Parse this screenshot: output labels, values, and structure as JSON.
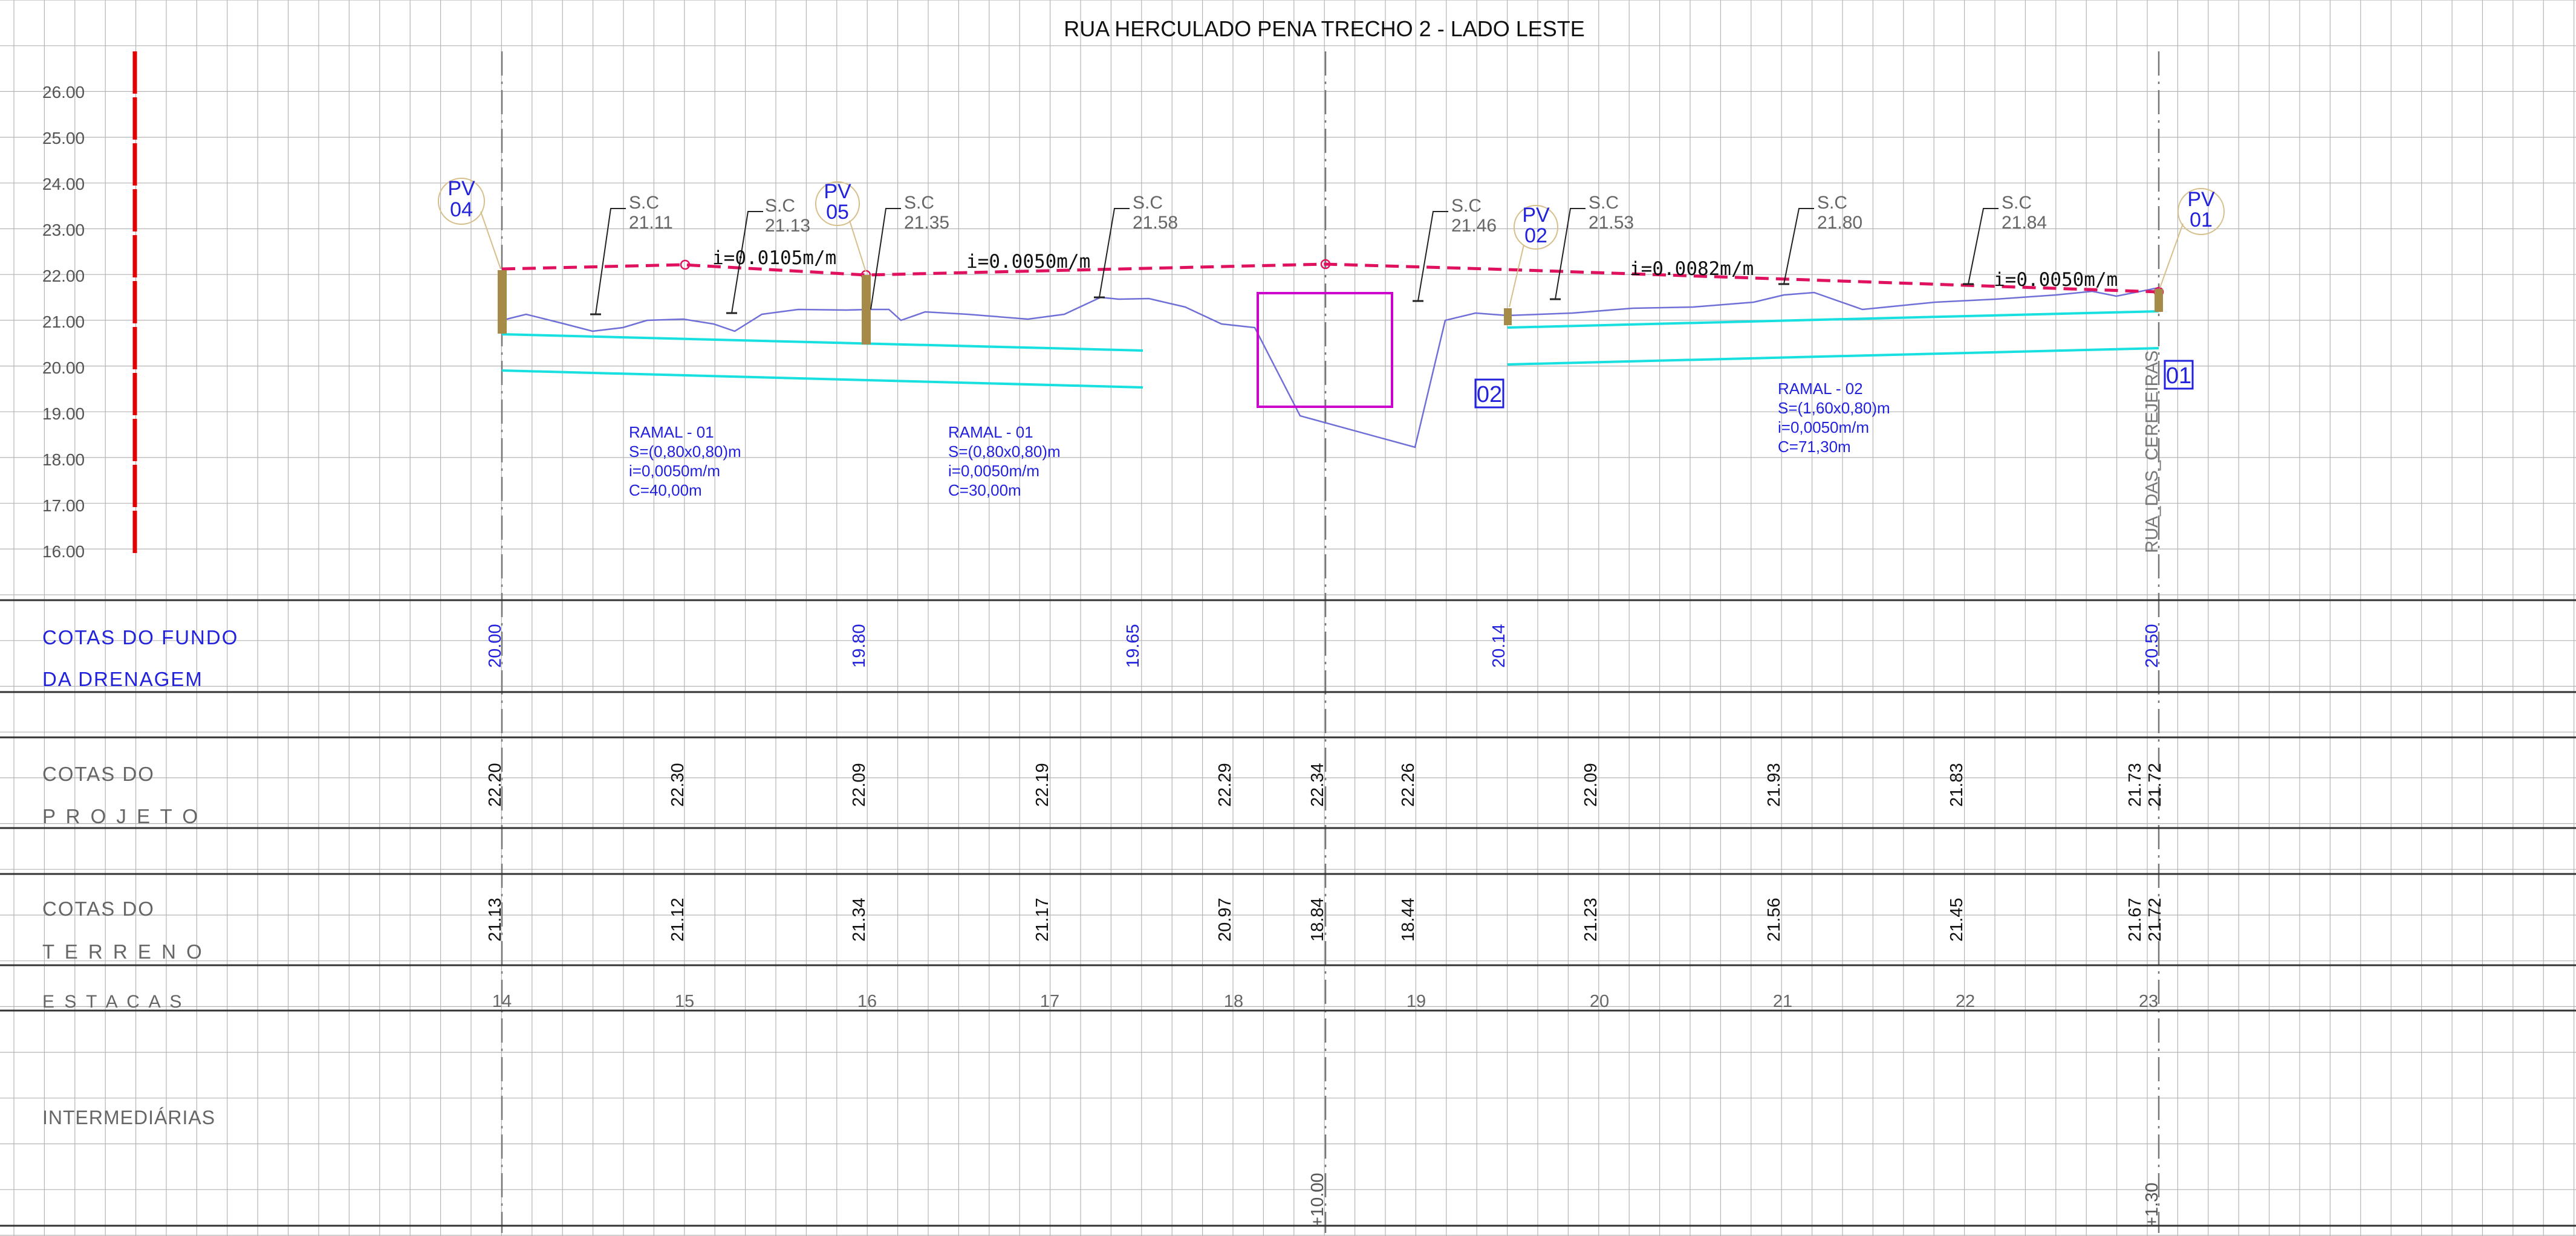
{
  "title": "RUA HERCULADO PENA TRECHO 2 - LADO LESTE",
  "colors": {
    "grid": "#b4b4b4",
    "band": "#333333",
    "design": "#e0115f",
    "terrain": "#6f6fd8",
    "pipe": "#19e0e0",
    "box": "#cc00cc",
    "pv": "#a68a47",
    "blue_text": "#2222dd",
    "gray_text": "#555555",
    "ruler": "#e00000"
  },
  "y_axis_labels": [
    "26.00",
    "25.00",
    "24.00",
    "23.00",
    "22.00",
    "21.00",
    "20.00",
    "19.00",
    "18.00",
    "17.00",
    "16.00"
  ],
  "pvs": [
    {
      "label_top": "PV",
      "label_bottom": "04"
    },
    {
      "label_top": "PV",
      "label_bottom": "05"
    },
    {
      "label_top": "PV",
      "label_bottom": "02"
    },
    {
      "label_top": "PV",
      "label_bottom": "01"
    }
  ],
  "sc_labels": [
    {
      "title": "S.C",
      "value": "21.11"
    },
    {
      "title": "S.C",
      "value": "21.13"
    },
    {
      "title": "S.C",
      "value": "21.35"
    },
    {
      "title": "S.C",
      "value": "21.58"
    },
    {
      "title": "S.C",
      "value": "21.46"
    },
    {
      "title": "S.C",
      "value": "21.53"
    },
    {
      "title": "S.C",
      "value": "21.80"
    },
    {
      "title": "S.C",
      "value": "21.84"
    }
  ],
  "slopes": [
    "i=0.0105m/m",
    "i=0.0050m/m",
    "i=0.0082m/m",
    "i=0.0050m/m"
  ],
  "ramais": [
    {
      "lines": [
        "RAMAL - 01",
        "S=(0,80x0,80)m",
        "i=0,0050m/m",
        "C=40,00m"
      ]
    },
    {
      "lines": [
        "RAMAL - 01",
        "S=(0,80x0,80)m",
        "i=0,0050m/m",
        "C=30,00m"
      ]
    },
    {
      "lines": [
        "RAMAL - 02",
        "S=(1,60x0,80)m",
        "i=0,0050m/m",
        "C=71,30m"
      ]
    }
  ],
  "box_tags": [
    "02",
    "01"
  ],
  "street_label": "RUA_DAS_CEREJEIRAS",
  "bands": {
    "fundo": {
      "label_line1": "COTAS DO FUNDO",
      "label_line2": "DA DRENAGEM",
      "values": [
        "20.00",
        "19.80",
        "19.65",
        "20.14",
        "20.50"
      ]
    },
    "projeto": {
      "label_line1": "COTAS DO",
      "label_line2": "P R O J E T O",
      "values": [
        "22.20",
        "22.30",
        "22.09",
        "22.19",
        "22.29",
        "22.34",
        "22.26",
        "22.09",
        "21.93",
        "21.83",
        "21.73",
        "21.72"
      ]
    },
    "terreno": {
      "label_line1": "COTAS DO",
      "label_line2": "T E R R E N O",
      "values": [
        "21.13",
        "21.12",
        "21.34",
        "21.17",
        "20.97",
        "18.84",
        "18.44",
        "21.23",
        "21.56",
        "21.45",
        "21.67",
        "21.72"
      ]
    },
    "estacas": {
      "label": "E S T A C A S",
      "values": [
        "14",
        "15",
        "16",
        "17",
        "18",
        "19",
        "20",
        "21",
        "22",
        "23"
      ]
    },
    "intermediarias": {
      "label": "INTERMEDIÁRIAS",
      "values": [
        "+10.00",
        "+1.30"
      ]
    }
  }
}
